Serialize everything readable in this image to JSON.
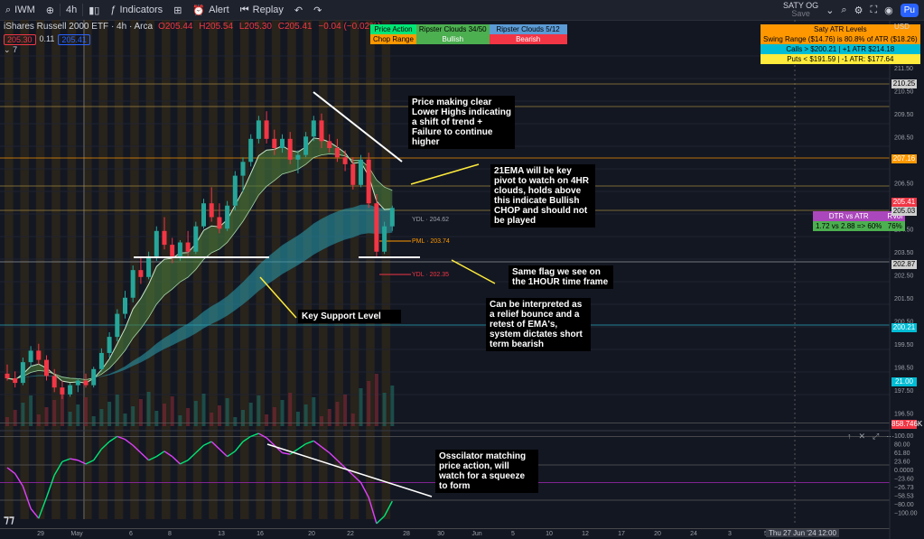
{
  "toolbar": {
    "symbol": "IWM",
    "interval": "4h",
    "indicators": "Indicators",
    "alert": "Alert",
    "replay": "Replay",
    "profile": "SATY OG",
    "profile_sub": "Save",
    "publish": "Pu"
  },
  "legend": {
    "title": "iShares Russell 2000 ETF · 4h · Arca",
    "ohlc": [
      "O205.44",
      "H205.54",
      "L205.30",
      "C205.41",
      "−0.04 (−0.02%)"
    ],
    "bid": "205.30",
    "spread": "0.11",
    "ask": "205.41",
    "count": "7"
  },
  "top_table": {
    "headers": [
      "Price Action",
      "Ripster Clouds 34/50",
      "Ripster Clouds 5/12"
    ],
    "values": [
      "Chop Range",
      "Bullish",
      "Bearish"
    ]
  },
  "atr_table": {
    "title": "Saty ATR Levels",
    "rows": [
      "Swing Range ($14.76) is 80.8% of ATR ($18.26)",
      "Calls > $200.21 | +1 ATR $214.18",
      "Puts < $191.59 | -1 ATR: $177.64"
    ]
  },
  "dtr_table": {
    "headers": [
      "DTR vs ATR",
      "RVol"
    ],
    "values": [
      "1.72 vs 2.88 => 60%",
      "76%"
    ]
  },
  "notes": {
    "n1": "Price making clear Lower Highs indicating a shift of trend + Failure to continue higher",
    "n2": "21EMA will be key pivot to watch on 4HR clouds, holds above this indicate Bullish CHOP and should not be played",
    "n3": "Same flag we see on the 1HOUR time frame",
    "n4": "Can be interpreted as a relief bounce and a retest of EMA's, system dictates short term bearish",
    "n5": "Key Support Level",
    "n6": "Osscilator matching price action, will watch for a squeeze to form"
  },
  "level_labels": [
    "YDL · 204.62",
    "PML · 203.74",
    "YDL · 202.35"
  ],
  "axis": {
    "currency": "USD",
    "price_ticks": [
      "211.50",
      "210.50",
      "209.50",
      "208.50",
      "207.50",
      "206.50",
      "205.50",
      "204.50",
      "203.50",
      "202.50",
      "201.50",
      "200.50",
      "199.50",
      "198.50",
      "197.50",
      "196.50"
    ],
    "price_boxes": [
      {
        "v": "210.25",
        "c": "#cfcfcf"
      },
      {
        "v": "207.16",
        "c": "#ff9800"
      },
      {
        "v": "205.41",
        "c": "#f23645"
      },
      {
        "v": "205.03",
        "c": "#cfcfcf"
      },
      {
        "v": "202.87",
        "c": "#cfcfcf"
      },
      {
        "v": "200.21",
        "c": "#00bcd4"
      },
      {
        "v": "21.00",
        "c": "#00bcd4"
      },
      {
        "v": "858.746K",
        "c": "#f23645"
      }
    ],
    "osc_ticks": [
      "100.00",
      "80.00",
      "61.80",
      "23.60",
      "0.0000",
      "−23.60",
      "−26.73",
      "−58.53",
      "−80.00",
      "−100.00"
    ],
    "x_ticks": [
      "29",
      "May",
      "6",
      "8",
      "13",
      "16",
      "20",
      "22",
      "28",
      "30",
      "Jun",
      "5",
      "10",
      "12",
      "17",
      "20",
      "24",
      "3",
      "5"
    ],
    "crosshair_time": "Thu 27 Jun '24  12:00"
  },
  "colors": {
    "bull": "#26a69a",
    "bear": "#f23645",
    "cloud_green": "#4a7a3c",
    "cloud_teal": "#2aa0b0"
  },
  "chart_data": {
    "type": "candlestick",
    "title": "iShares Russell 2000 ETF · 4h · Arca",
    "ylim": [
      196.0,
      212.0
    ],
    "candles": [
      [
        198.2,
        198.6,
        197.9,
        198.0
      ],
      [
        198.0,
        198.3,
        197.6,
        197.8
      ],
      [
        197.8,
        198.9,
        197.7,
        198.7
      ],
      [
        198.7,
        199.4,
        198.5,
        199.2
      ],
      [
        199.2,
        199.5,
        198.6,
        198.8
      ],
      [
        198.8,
        199.0,
        197.9,
        198.1
      ],
      [
        198.1,
        198.4,
        197.4,
        197.6
      ],
      [
        197.6,
        197.9,
        197.1,
        197.3
      ],
      [
        197.3,
        197.8,
        197.2,
        197.7
      ],
      [
        197.7,
        198.0,
        197.4,
        197.9
      ],
      [
        197.9,
        198.2,
        197.6,
        197.7
      ],
      [
        197.7,
        198.5,
        197.6,
        198.4
      ],
      [
        198.4,
        199.3,
        198.3,
        199.1
      ],
      [
        199.1,
        200.0,
        198.9,
        199.8
      ],
      [
        199.8,
        201.0,
        199.6,
        200.8
      ],
      [
        200.8,
        201.8,
        200.6,
        201.5
      ],
      [
        201.5,
        202.9,
        201.3,
        202.7
      ],
      [
        202.7,
        203.3,
        202.1,
        202.4
      ],
      [
        202.4,
        203.5,
        202.3,
        203.3
      ],
      [
        203.3,
        204.6,
        203.1,
        204.4
      ],
      [
        204.4,
        205.0,
        203.6,
        203.8
      ],
      [
        203.8,
        204.1,
        203.0,
        203.3
      ],
      [
        203.3,
        204.0,
        203.1,
        203.9
      ],
      [
        203.9,
        204.4,
        203.3,
        203.5
      ],
      [
        203.5,
        204.8,
        203.4,
        204.6
      ],
      [
        204.6,
        205.8,
        204.5,
        205.6
      ],
      [
        205.6,
        206.3,
        204.8,
        205.0
      ],
      [
        205.0,
        205.6,
        204.3,
        204.5
      ],
      [
        204.5,
        205.7,
        204.4,
        205.5
      ],
      [
        205.5,
        207.0,
        205.3,
        206.8
      ],
      [
        206.8,
        207.6,
        206.1,
        207.4
      ],
      [
        207.4,
        208.6,
        207.2,
        208.4
      ],
      [
        208.4,
        209.4,
        208.2,
        209.2
      ],
      [
        209.2,
        209.6,
        208.2,
        208.4
      ],
      [
        208.4,
        208.8,
        207.7,
        208.0
      ],
      [
        208.0,
        208.6,
        207.8,
        208.4
      ],
      [
        208.4,
        208.7,
        207.3,
        207.5
      ],
      [
        207.5,
        207.9,
        206.9,
        207.7
      ],
      [
        207.7,
        208.7,
        207.6,
        208.5
      ],
      [
        208.5,
        209.4,
        208.3,
        209.2
      ],
      [
        209.2,
        209.5,
        208.0,
        208.3
      ],
      [
        208.3,
        208.6,
        207.8,
        208.0
      ],
      [
        208.0,
        208.4,
        207.4,
        207.6
      ],
      [
        207.6,
        207.9,
        207.0,
        207.3
      ],
      [
        207.3,
        207.6,
        206.2,
        206.4
      ],
      [
        206.4,
        207.7,
        206.3,
        207.5
      ],
      [
        207.5,
        207.8,
        205.4,
        205.6
      ],
      [
        205.6,
        206.0,
        203.3,
        203.5
      ],
      [
        203.5,
        204.8,
        203.4,
        204.6
      ],
      [
        204.6,
        205.5,
        204.4,
        205.4
      ]
    ],
    "oscillator": [
      20,
      12,
      -5,
      -35,
      -48,
      -20,
      10,
      28,
      32,
      30,
      25,
      30,
      45,
      55,
      62,
      58,
      50,
      40,
      30,
      35,
      42,
      35,
      25,
      30,
      40,
      50,
      55,
      45,
      35,
      42,
      55,
      62,
      66,
      60,
      50,
      40,
      38,
      45,
      52,
      56,
      48,
      40,
      30,
      20,
      10,
      0,
      -20,
      -55,
      -45,
      -25
    ]
  }
}
